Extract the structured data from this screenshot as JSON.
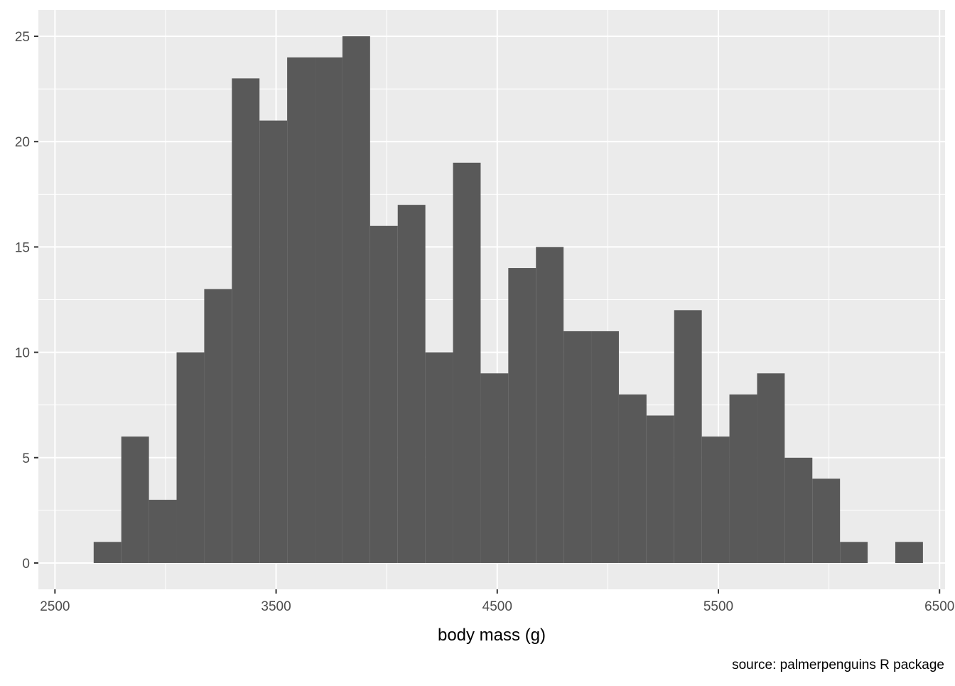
{
  "chart_data": {
    "type": "bar",
    "subtype": "histogram",
    "title": "",
    "xlabel": "body mass (g)",
    "ylabel": "",
    "caption": "source: palmerpenguins R package",
    "xlim": [
      2500,
      6500
    ],
    "ylim": [
      0,
      25
    ],
    "xticks": [
      2500,
      3500,
      4500,
      5500,
      6500
    ],
    "yticks": [
      0,
      5,
      10,
      15,
      20,
      25
    ],
    "bins": [
      {
        "x0": 2675,
        "x1": 2800,
        "count": 1
      },
      {
        "x0": 2800,
        "x1": 2925,
        "count": 6
      },
      {
        "x0": 2925,
        "x1": 3050,
        "count": 3
      },
      {
        "x0": 3050,
        "x1": 3175,
        "count": 10
      },
      {
        "x0": 3175,
        "x1": 3300,
        "count": 13
      },
      {
        "x0": 3300,
        "x1": 3425,
        "count": 23
      },
      {
        "x0": 3425,
        "x1": 3550,
        "count": 21
      },
      {
        "x0": 3550,
        "x1": 3675,
        "count": 24
      },
      {
        "x0": 3675,
        "x1": 3800,
        "count": 24
      },
      {
        "x0": 3800,
        "x1": 3925,
        "count": 25
      },
      {
        "x0": 3925,
        "x1": 4050,
        "count": 16
      },
      {
        "x0": 4050,
        "x1": 4175,
        "count": 17
      },
      {
        "x0": 4175,
        "x1": 4300,
        "count": 10
      },
      {
        "x0": 4300,
        "x1": 4425,
        "count": 19
      },
      {
        "x0": 4425,
        "x1": 4550,
        "count": 9
      },
      {
        "x0": 4550,
        "x1": 4675,
        "count": 14
      },
      {
        "x0": 4675,
        "x1": 4800,
        "count": 15
      },
      {
        "x0": 4800,
        "x1": 4925,
        "count": 11
      },
      {
        "x0": 4925,
        "x1": 5050,
        "count": 11
      },
      {
        "x0": 5050,
        "x1": 5175,
        "count": 8
      },
      {
        "x0": 5175,
        "x1": 5300,
        "count": 7
      },
      {
        "x0": 5300,
        "x1": 5425,
        "count": 12
      },
      {
        "x0": 5425,
        "x1": 5550,
        "count": 6
      },
      {
        "x0": 5550,
        "x1": 5675,
        "count": 8
      },
      {
        "x0": 5675,
        "x1": 5800,
        "count": 9
      },
      {
        "x0": 5800,
        "x1": 5925,
        "count": 5
      },
      {
        "x0": 5925,
        "x1": 6050,
        "count": 4
      },
      {
        "x0": 6050,
        "x1": 6175,
        "count": 1
      },
      {
        "x0": 6175,
        "x1": 6300,
        "count": 0
      },
      {
        "x0": 6300,
        "x1": 6425,
        "count": 1
      }
    ],
    "grid": true,
    "bar_color": "#595959",
    "panel_background": "#ebebeb",
    "grid_color": "#ffffff"
  }
}
